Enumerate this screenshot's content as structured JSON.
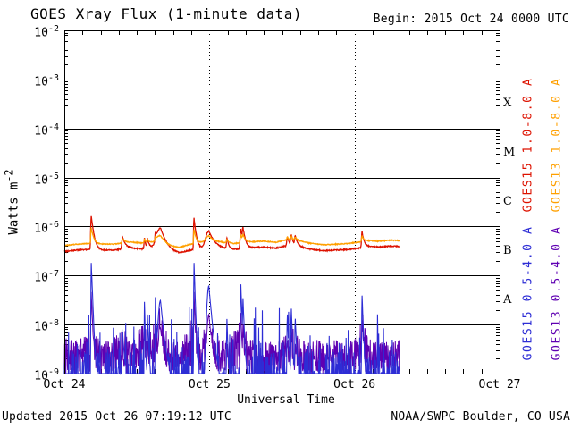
{
  "chart_data": {
    "type": "line",
    "title": "GOES Xray Flux (1-minute data)",
    "begin_label": "Begin:  2015 Oct 24 0000 UTC",
    "footer_left": "Updated 2015 Oct 26 07:19:12 UTC",
    "footer_right": "NOAA/SWPC Boulder, CO USA",
    "x_axis": {
      "label": "Universal Time",
      "start": "2015 Oct 24 0000 UTC",
      "hours_total": 72,
      "tick_labels": [
        "Oct 24",
        "Oct 25",
        "Oct 26",
        "Oct 27"
      ],
      "tick_hours": [
        0,
        24,
        48,
        72
      ],
      "minor_tick_hours": 3,
      "gridline_hours": [
        24,
        48
      ]
    },
    "y_axis": {
      "label_base": "Watts m",
      "label_exp": "-2",
      "scale": "log",
      "min": 1e-09,
      "max": 0.01,
      "tick_exponents": [
        -2,
        -3,
        -4,
        -5,
        -6,
        -7,
        -8,
        -9
      ]
    },
    "flare_classes": [
      {
        "label": "X",
        "center_log_flux": -3.5
      },
      {
        "label": "M",
        "center_log_flux": -4.5
      },
      {
        "label": "C",
        "center_log_flux": -5.5
      },
      {
        "label": "B",
        "center_log_flux": -6.5
      },
      {
        "label": "A",
        "center_log_flux": -7.5
      }
    ],
    "legend": [
      {
        "label": "GOES15 1.0-8.0 A",
        "color": "#dd1200",
        "group": "long",
        "column": 0
      },
      {
        "label": "GOES13 1.0-8.0 A",
        "color": "#ffa000",
        "group": "long",
        "column": 1
      },
      {
        "label": "GOES15 0.5-4.0 A",
        "color": "#2d2dd5",
        "group": "short",
        "column": 0
      },
      {
        "label": "GOES13 0.5-4.0 A",
        "color": "#5f00b2",
        "group": "short",
        "column": 1
      }
    ],
    "data_end_hours": 55.4,
    "sample_step_hours": 0.05,
    "series": [
      {
        "name": "GOES15 1.0-8.0 A",
        "color": "#dd1200",
        "kind": "long_primary",
        "noise": 0.05,
        "baseline": [
          [
            0,
            3.1e-07
          ],
          [
            2,
            3.3e-07
          ],
          [
            4,
            3.4e-07
          ],
          [
            6,
            3.3e-07
          ],
          [
            8,
            3.3e-07
          ],
          [
            11,
            3.6e-07
          ],
          [
            13,
            3.5e-07
          ],
          [
            14.5,
            3.6e-07
          ],
          [
            17.5,
            2.9e-07
          ],
          [
            19,
            2.8e-07
          ],
          [
            20.5,
            3.2e-07
          ],
          [
            22.5,
            3.6e-07
          ],
          [
            25.5,
            3.6e-07
          ],
          [
            28,
            3.4e-07
          ],
          [
            31,
            3.7e-07
          ],
          [
            33,
            3.8e-07
          ],
          [
            35,
            3.6e-07
          ],
          [
            36.5,
            4e-07
          ],
          [
            39,
            3.8e-07
          ],
          [
            41,
            3.4e-07
          ],
          [
            43,
            3.2e-07
          ],
          [
            45,
            3.3e-07
          ],
          [
            47,
            3.4e-07
          ],
          [
            48.5,
            3.6e-07
          ],
          [
            50.5,
            3.9e-07
          ],
          [
            52,
            3.8e-07
          ],
          [
            54,
            4e-07
          ],
          [
            55.4,
            3.9e-07
          ]
        ]
      },
      {
        "name": "GOES13 1.0-8.0 A",
        "color": "#ffa000",
        "kind": "long_secondary",
        "baseline_factor": 1.32,
        "flare_factor": 0.38,
        "noise": 0.04
      },
      {
        "name": "GOES15 0.5-4.0 A",
        "color": "#2d2dd5",
        "kind": "short_spiky",
        "floor": 1e-09,
        "spike_prob": [
          [
            0.22,
            -9.0,
            -8.55
          ],
          [
            0.05,
            -8.55,
            -8.05
          ],
          [
            0.012,
            -8.05,
            -7.55
          ]
        ]
      },
      {
        "name": "GOES13 0.5-4.0 A",
        "color": "#5f00b2",
        "kind": "short_noisy",
        "low_log": -8.97,
        "dropout_prob": 0.03,
        "high_log": [
          [
            0,
            -8.25
          ],
          [
            2,
            -8.3
          ],
          [
            4.3,
            -8.0
          ],
          [
            4.8,
            -8.15
          ],
          [
            6,
            -8.3
          ],
          [
            8,
            -8.3
          ],
          [
            9.7,
            -8.05
          ],
          [
            11,
            -8.3
          ],
          [
            13.2,
            -7.95
          ],
          [
            14,
            -8.2
          ],
          [
            15.9,
            -7.62
          ],
          [
            16.8,
            -8.0
          ],
          [
            18,
            -8.3
          ],
          [
            19.5,
            -8.35
          ],
          [
            21.4,
            -7.7
          ],
          [
            22.3,
            -8.2
          ],
          [
            23.9,
            -7.85
          ],
          [
            25,
            -8.2
          ],
          [
            26.5,
            -8.3
          ],
          [
            27.5,
            -8.3
          ],
          [
            29.2,
            -7.75
          ],
          [
            30.2,
            -8.2
          ],
          [
            31.5,
            -8.35
          ],
          [
            33,
            -8.3
          ],
          [
            34.5,
            -8.35
          ],
          [
            36,
            -8.3
          ],
          [
            37.5,
            -8.0
          ],
          [
            38.6,
            -8.2
          ],
          [
            40,
            -8.35
          ],
          [
            41.5,
            -8.3
          ],
          [
            43,
            -8.35
          ],
          [
            44.5,
            -8.3
          ],
          [
            46,
            -8.35
          ],
          [
            47.5,
            -8.3
          ],
          [
            48.7,
            -8.2
          ],
          [
            49.25,
            -7.65
          ],
          [
            49.9,
            -8.1
          ],
          [
            51,
            -8.3
          ],
          [
            52.5,
            -8.35
          ],
          [
            54,
            -8.3
          ],
          [
            55.4,
            -8.3
          ]
        ]
      }
    ],
    "flares": [
      {
        "t": 4.45,
        "long": 1.3e-06,
        "short": 1.8e-07,
        "rise": 0.07,
        "decay": 0.35
      },
      {
        "t": 9.65,
        "long": 2.6e-07,
        "short": 6e-09,
        "rise": 0.12,
        "decay": 0.45
      },
      {
        "t": 13.25,
        "long": 2.4e-07,
        "short": 2.8e-08,
        "rise": 0.06,
        "decay": 0.2
      },
      {
        "t": 13.75,
        "long": 2e-07,
        "short": 1.5e-08,
        "rise": 0.06,
        "decay": 0.3
      },
      {
        "t": 15.05,
        "long": 2.5e-07,
        "short": 3.5e-08,
        "rise": 0.06,
        "decay": 0.2
      },
      {
        "t": 15.9,
        "long": 6e-07,
        "short": 3e-08,
        "rise": 0.55,
        "decay": 0.85
      },
      {
        "t": 21.45,
        "long": 1.15e-06,
        "short": 1.8e-07,
        "rise": 0.06,
        "decay": 0.3
      },
      {
        "t": 23.9,
        "long": 4.5e-07,
        "short": 6e-08,
        "rise": 0.45,
        "decay": 0.8
      },
      {
        "t": 26.9,
        "long": 2.3e-07,
        "short": 1.2e-08,
        "rise": 0.08,
        "decay": 0.25
      },
      {
        "t": 29.2,
        "long": 5.5e-07,
        "short": 6.5e-08,
        "rise": 0.1,
        "decay": 0.3
      },
      {
        "t": 29.55,
        "long": 4.5e-07,
        "short": 3e-08,
        "rise": 0.08,
        "decay": 0.35
      },
      {
        "t": 36.9,
        "long": 2.2e-07,
        "short": 1.5e-08,
        "rise": 0.1,
        "decay": 0.3
      },
      {
        "t": 37.55,
        "long": 2.6e-07,
        "short": 2e-08,
        "rise": 0.1,
        "decay": 0.3
      },
      {
        "t": 38.2,
        "long": 2.4e-07,
        "short": 1.2e-08,
        "rise": 0.1,
        "decay": 0.35
      },
      {
        "t": 49.25,
        "long": 4.2e-07,
        "short": 3.8e-08,
        "rise": 0.08,
        "decay": 0.3
      }
    ]
  }
}
